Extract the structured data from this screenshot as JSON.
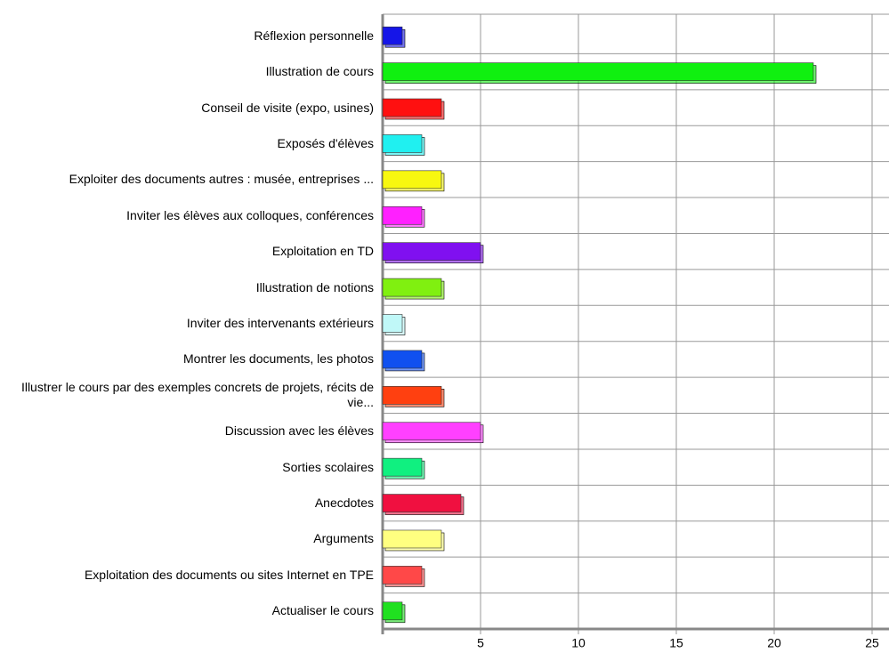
{
  "chart_data": {
    "type": "bar",
    "orientation": "horizontal",
    "categories": [
      "Réflexion personnelle",
      "Illustration de cours",
      "Conseil de visite (expo, usines)",
      "Exposés d'élèves",
      "Exploiter des documents autres : musée, entreprises ...",
      "Inviter les élèves aux colloques, conférences",
      "Exploitation en TD",
      "Illustration de notions",
      "Inviter des intervenants extérieurs",
      "Montrer les documents, les photos",
      "Illustrer le cours par des exemples concrets de projets, récits de vie...",
      "Discussion avec les élèves",
      "Sorties scolaires",
      "Anecdotes",
      "Arguments",
      "Exploitation des documents ou sites Internet en TPE",
      "Actualiser le cours"
    ],
    "values": [
      1,
      22,
      3,
      2,
      3,
      2,
      5,
      3,
      1,
      2,
      3,
      5,
      2,
      4,
      3,
      2,
      1
    ],
    "colors": [
      "#1515e8",
      "#10f010",
      "#ff1010",
      "#20f0f0",
      "#f8f810",
      "#ff20ff",
      "#8010f0",
      "#80f010",
      "#c0f8f8",
      "#1050f0",
      "#ff4010",
      "#ff40ff",
      "#10f080",
      "#f01040",
      "#ffff80",
      "#ff4848",
      "#20e020"
    ],
    "xlim": [
      0,
      25.5
    ],
    "xticks": [
      5,
      10,
      15,
      20,
      25
    ],
    "grid": true
  }
}
